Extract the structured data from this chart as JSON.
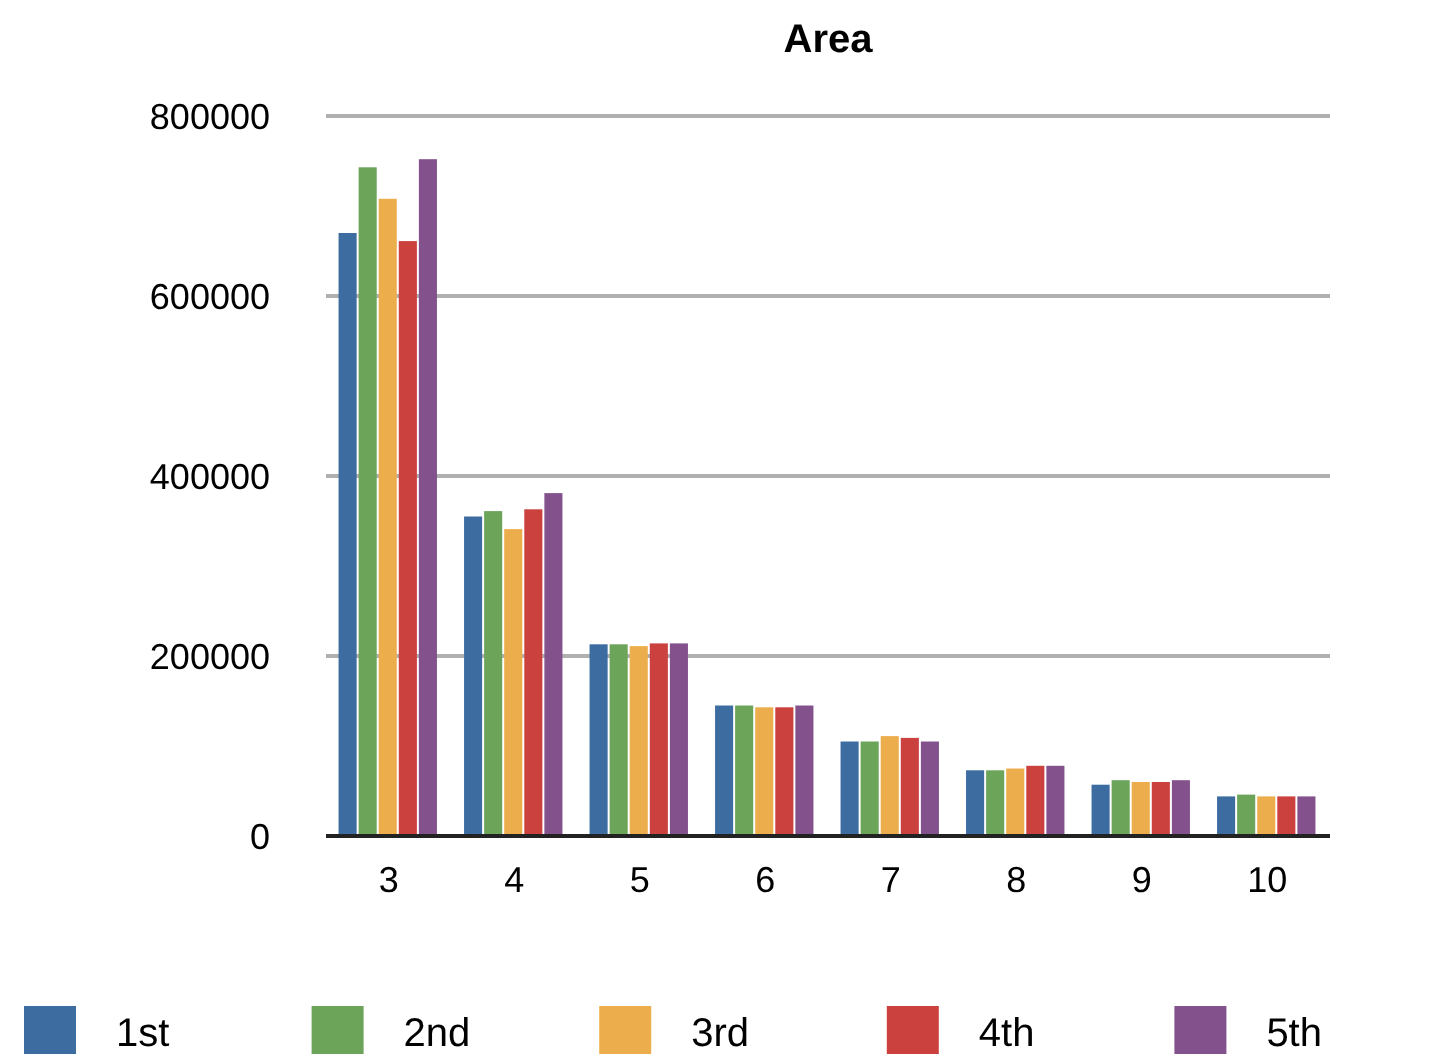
{
  "chart_data": {
    "type": "bar",
    "title": "Area",
    "categories": [
      "3",
      "4",
      "5",
      "6",
      "7",
      "8",
      "9",
      "10"
    ],
    "series": [
      {
        "name": "1st",
        "color": "#3d6da0",
        "values": [
          670000,
          355000,
          213000,
          145000,
          105000,
          73000,
          57000,
          44000
        ]
      },
      {
        "name": "2nd",
        "color": "#6ca45a",
        "values": [
          743000,
          361000,
          213000,
          145000,
          105000,
          73000,
          62000,
          46000
        ]
      },
      {
        "name": "3rd",
        "color": "#ecae4c",
        "values": [
          708000,
          341000,
          211000,
          143000,
          111000,
          75000,
          60000,
          44000
        ]
      },
      {
        "name": "4th",
        "color": "#cb413e",
        "values": [
          661000,
          363000,
          214000,
          143000,
          109000,
          78000,
          60000,
          44000
        ]
      },
      {
        "name": "5th",
        "color": "#83528d",
        "values": [
          752000,
          381000,
          214000,
          145000,
          105000,
          78000,
          62000,
          44000
        ]
      }
    ],
    "ylim": [
      0,
      800000
    ],
    "yticks": [
      0,
      200000,
      400000,
      600000,
      800000
    ],
    "grid": "y",
    "legend": "bottom"
  }
}
